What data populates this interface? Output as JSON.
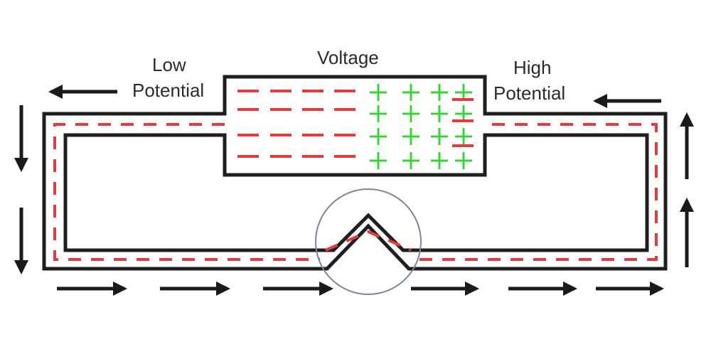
{
  "labels": {
    "voltage": "Voltage",
    "low_line1": "Low",
    "low_line2": "Potential",
    "high_line1": "High",
    "high_line2": "Potential"
  },
  "colors": {
    "wire": "#1f1f1f",
    "negative_charge": "#e23b3b",
    "positive_charge": "#39d43a",
    "arrow": "#1a1a1a",
    "highlight_circle": "#7a8696"
  },
  "charges": {
    "battery_negative_rows": 4,
    "battery_positive_columns": 4,
    "battery_positive_rows": 4
  },
  "symbols": {
    "negative": "negative-charge",
    "positive": "positive-charge",
    "arrow": "flow-arrow"
  }
}
